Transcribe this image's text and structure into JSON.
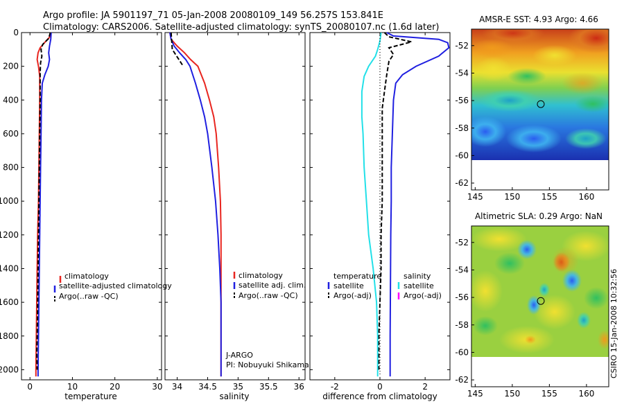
{
  "header": {
    "line1": "Argo profile: JA 5901197_71 05-Jan-2008 20080109_149 56.257S 153.841E",
    "line2": "Climatology: CARS2006. Satellite-adjusted climatology: synTS_20080107.nc (1.6d later)"
  },
  "side_text": "CSIRO 15-Jan-2008 10:32:56",
  "colors": {
    "red": "#e8251f",
    "blue": "#1f1fe0",
    "black": "#000000",
    "cyan": "#22e0e8",
    "magenta": "#ff00ff"
  },
  "chart_data": [
    {
      "type": "line",
      "xlabel": "temperature",
      "ylim": [
        2060,
        0
      ],
      "xlim": [
        -2,
        31
      ],
      "xticks": [
        0,
        10,
        20,
        30
      ],
      "yticks": [
        0,
        200,
        400,
        600,
        800,
        1000,
        1200,
        1400,
        1600,
        1800,
        2000
      ],
      "legend": {
        "placement": "center-right",
        "entries": [
          "climatology",
          "satellite-adjusted climatology",
          "Argo(..raw -QC)"
        ]
      },
      "series": [
        {
          "name": "climatology",
          "color": "red",
          "style": "solid",
          "points": [
            [
              5.0,
              0
            ],
            [
              4.7,
              25
            ],
            [
              3.6,
              55
            ],
            [
              2.4,
              90
            ],
            [
              1.9,
              120
            ],
            [
              1.7,
              160
            ],
            [
              2.0,
              200
            ],
            [
              2.3,
              260
            ],
            [
              2.3,
              400
            ],
            [
              2.2,
              600
            ],
            [
              2.1,
              800
            ],
            [
              2.0,
              1000
            ],
            [
              1.8,
              1200
            ],
            [
              1.7,
              1400
            ],
            [
              1.6,
              1600
            ],
            [
              1.5,
              1800
            ],
            [
              1.4,
              2000
            ],
            [
              1.4,
              2040
            ]
          ]
        },
        {
          "name": "satellite-adjusted climatology",
          "color": "blue",
          "style": "solid",
          "points": [
            [
              5.0,
              0
            ],
            [
              4.9,
              40
            ],
            [
              4.6,
              80
            ],
            [
              4.4,
              120
            ],
            [
              4.6,
              160
            ],
            [
              4.3,
              200
            ],
            [
              3.5,
              250
            ],
            [
              2.9,
              300
            ],
            [
              2.7,
              400
            ],
            [
              2.6,
              600
            ],
            [
              2.5,
              800
            ],
            [
              2.4,
              1000
            ],
            [
              2.3,
              1200
            ],
            [
              2.2,
              1400
            ],
            [
              2.1,
              1600
            ],
            [
              2.0,
              1800
            ],
            [
              1.9,
              2000
            ],
            [
              1.9,
              2040
            ]
          ]
        },
        {
          "name": "Argo(..raw -QC)",
          "color": "black",
          "style": "dash",
          "points": [
            [
              4.8,
              0
            ],
            [
              4.4,
              35
            ],
            [
              3.0,
              70
            ],
            [
              2.6,
              100
            ],
            [
              2.8,
              140
            ],
            [
              2.5,
              180
            ],
            [
              2.4,
              240
            ],
            [
              2.4,
              400
            ],
            [
              2.3,
              600
            ],
            [
              2.2,
              800
            ],
            [
              2.1,
              1000
            ],
            [
              2.0,
              1200
            ],
            [
              1.9,
              1400
            ],
            [
              1.8,
              1600
            ],
            [
              1.7,
              1800
            ],
            [
              1.6,
              1900
            ],
            [
              1.7,
              2000
            ]
          ]
        }
      ]
    },
    {
      "type": "line",
      "xlabel": "salinity",
      "ylim": [
        2060,
        0
      ],
      "xlim": [
        33.8,
        36.1
      ],
      "xticks": [
        34,
        34.5,
        35,
        35.5,
        36
      ],
      "xtick_labels": [
        "34",
        "34.5",
        "35",
        "35.5",
        "36"
      ],
      "legend": {
        "placement": "center-right",
        "entries": [
          "climatology",
          "satellite adj. clim.",
          "Argo(..raw -QC)"
        ]
      },
      "annotations": [
        "J-ARGO",
        "PI: Nobuyuki Shikama"
      ],
      "series": [
        {
          "name": "climatology",
          "color": "red",
          "style": "solid",
          "points": [
            [
              33.88,
              0
            ],
            [
              33.9,
              40
            ],
            [
              34.0,
              80
            ],
            [
              34.12,
              120
            ],
            [
              34.22,
              160
            ],
            [
              34.34,
              200
            ],
            [
              34.45,
              300
            ],
            [
              34.53,
              400
            ],
            [
              34.6,
              500
            ],
            [
              34.64,
              600
            ],
            [
              34.68,
              800
            ],
            [
              34.71,
              1000
            ],
            [
              34.72,
              1200
            ],
            [
              34.72,
              1400
            ],
            [
              34.72,
              1600
            ],
            [
              34.72,
              1800
            ],
            [
              34.72,
              2000
            ],
            [
              34.72,
              2040
            ]
          ]
        },
        {
          "name": "satellite adj. clim.",
          "color": "blue",
          "style": "solid",
          "points": [
            [
              33.88,
              0
            ],
            [
              33.9,
              40
            ],
            [
              33.95,
              80
            ],
            [
              34.04,
              120
            ],
            [
              34.14,
              160
            ],
            [
              34.21,
              200
            ],
            [
              34.3,
              300
            ],
            [
              34.38,
              400
            ],
            [
              34.45,
              500
            ],
            [
              34.5,
              600
            ],
            [
              34.57,
              800
            ],
            [
              34.63,
              1000
            ],
            [
              34.67,
              1200
            ],
            [
              34.7,
              1400
            ],
            [
              34.72,
              1600
            ],
            [
              34.72,
              1800
            ],
            [
              34.72,
              2000
            ],
            [
              34.72,
              2040
            ]
          ]
        },
        {
          "name": "Argo(..raw -QC)",
          "color": "black",
          "style": "dash",
          "points": [
            [
              33.9,
              0
            ],
            [
              33.92,
              100
            ],
            [
              34.1,
              200
            ]
          ]
        }
      ]
    },
    {
      "type": "line",
      "xlabel": "difference from climatology",
      "ylim": [
        2060,
        0
      ],
      "xlim": [
        -3.1,
        3.1
      ],
      "xticks": [
        -2,
        0,
        2
      ],
      "legend": {
        "placement": "center",
        "groups": [
          {
            "heading": "temperature",
            "entries": [
              "satellite",
              "Argo(-adj)"
            ]
          },
          {
            "heading": "salinity",
            "entries": [
              "satellite",
              "Argo(-adj)"
            ]
          }
        ]
      },
      "series": [
        {
          "name": "temperature satellite",
          "color": "blue",
          "style": "solid",
          "points": [
            [
              0.3,
              0
            ],
            [
              0.6,
              20
            ],
            [
              2.6,
              40
            ],
            [
              3.0,
              60
            ],
            [
              3.05,
              90
            ],
            [
              2.6,
              140
            ],
            [
              1.6,
              200
            ],
            [
              1.0,
              250
            ],
            [
              0.7,
              300
            ],
            [
              0.6,
              400
            ],
            [
              0.55,
              600
            ],
            [
              0.5,
              800
            ],
            [
              0.5,
              1000
            ],
            [
              0.48,
              1200
            ],
            [
              0.47,
              1400
            ],
            [
              0.46,
              1600
            ],
            [
              0.45,
              1800
            ],
            [
              0.45,
              2000
            ],
            [
              0.45,
              2040
            ]
          ]
        },
        {
          "name": "temperature Argo(-adj)",
          "color": "black",
          "style": "dash",
          "points": [
            [
              0.2,
              0
            ],
            [
              0.4,
              25
            ],
            [
              1.4,
              55
            ],
            [
              0.4,
              90
            ],
            [
              0.6,
              130
            ],
            [
              0.4,
              170
            ],
            [
              0.3,
              250
            ],
            [
              0.2,
              350
            ],
            [
              0.1,
              450
            ],
            [
              0.1,
              600
            ],
            [
              0.1,
              800
            ],
            [
              0.1,
              1000
            ],
            [
              0.05,
              1200
            ],
            [
              0.05,
              1400
            ],
            [
              0.0,
              1600
            ],
            [
              -0.05,
              1800
            ],
            [
              -0.05,
              1900
            ],
            [
              -0.05,
              2000
            ]
          ]
        },
        {
          "name": "salinity satellite",
          "color": "cyan",
          "style": "solid",
          "points": [
            [
              0.05,
              0
            ],
            [
              0.0,
              50
            ],
            [
              -0.1,
              100
            ],
            [
              -0.2,
              140
            ],
            [
              -0.5,
              200
            ],
            [
              -0.7,
              260
            ],
            [
              -0.8,
              350
            ],
            [
              -0.8,
              500
            ],
            [
              -0.75,
              600
            ],
            [
              -0.7,
              800
            ],
            [
              -0.6,
              1000
            ],
            [
              -0.5,
              1200
            ],
            [
              -0.3,
              1400
            ],
            [
              -0.15,
              1600
            ],
            [
              -0.1,
              1800
            ],
            [
              -0.1,
              2000
            ],
            [
              -0.1,
              2040
            ]
          ]
        },
        {
          "name": "salinity Argo(-adj)",
          "color": "black",
          "style": "dot",
          "points": [
            [
              0.0,
              0
            ],
            [
              0.0,
              500
            ],
            [
              0.0,
              1000
            ],
            [
              0.0,
              1500
            ],
            [
              0.0,
              2040
            ]
          ]
        }
      ]
    },
    {
      "type": "heatmap",
      "title": "AMSR-E SST: 4.93 Argo: 4.66",
      "xlim": [
        144.5,
        163
      ],
      "ylim": [
        -62.5,
        -50.8
      ],
      "xticks": [
        145,
        150,
        155,
        160
      ],
      "yticks": [
        -52,
        -54,
        -56,
        -58,
        -60,
        -62
      ],
      "marker": {
        "lon": 153.841,
        "lat": -56.257
      }
    },
    {
      "type": "heatmap",
      "title": "Altimetric SLA: 0.29 Argo: NaN",
      "xlim": [
        144.5,
        163
      ],
      "ylim": [
        -62.5,
        -50.8
      ],
      "xticks": [
        145,
        150,
        155,
        160
      ],
      "yticks": [
        -52,
        -54,
        -56,
        -58,
        -60,
        -62
      ],
      "marker": {
        "lon": 153.841,
        "lat": -56.257
      }
    }
  ]
}
